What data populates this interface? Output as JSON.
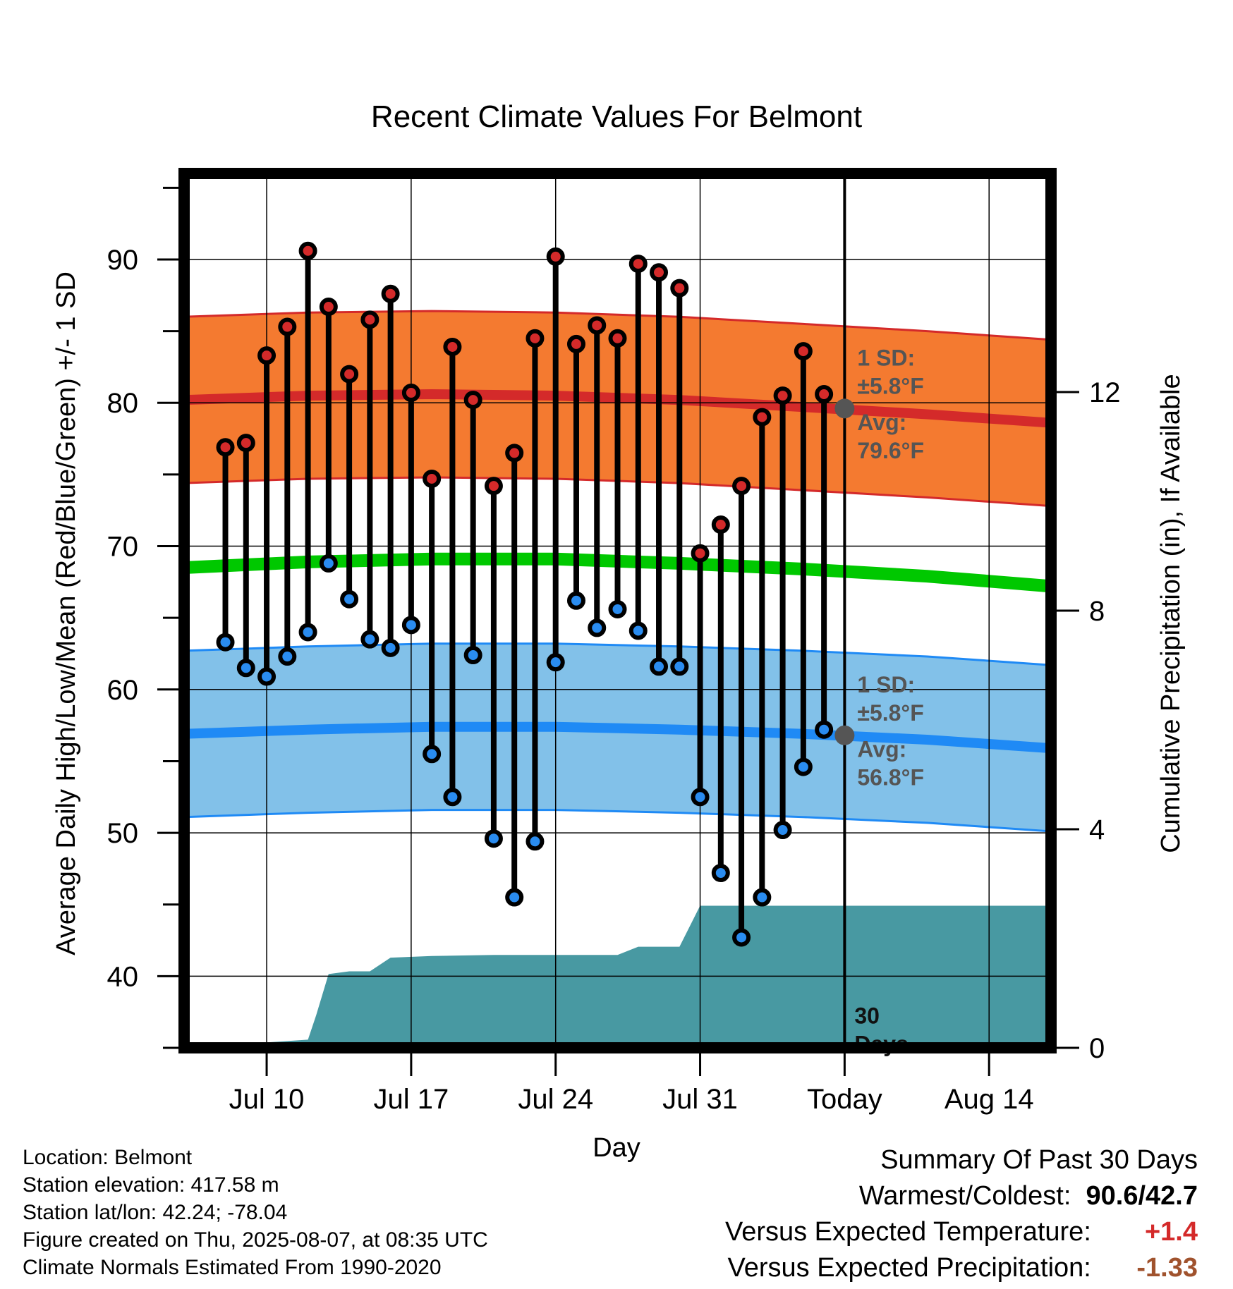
{
  "chart_data": {
    "type": "line",
    "title": "Recent Climate Values For Belmont",
    "xlabel": "Day",
    "ylabel": "Average Daily High/Low/Mean (Red/Blue/Green) +/- 1 SD",
    "y2label": "Cumulative Precipitation (in), If Available",
    "ylim": [
      35,
      96
    ],
    "y2lim": [
      0,
      16
    ],
    "xlim": [
      "2025-07-06",
      "2025-08-17"
    ],
    "x_ticks": [
      {
        "date": "2025-07-10",
        "label": "Jul 10"
      },
      {
        "date": "2025-07-17",
        "label": "Jul 17"
      },
      {
        "date": "2025-07-24",
        "label": "Jul 24"
      },
      {
        "date": "2025-07-31",
        "label": "Jul 31"
      },
      {
        "date": "2025-08-07",
        "label": "Today"
      },
      {
        "date": "2025-08-14",
        "label": "Aug 14"
      }
    ],
    "y_ticks": [
      40,
      50,
      60,
      70,
      80,
      90
    ],
    "y2_ticks": [
      0,
      4,
      8,
      12
    ],
    "grid": true,
    "today": "2025-08-07",
    "days": [
      "2025-07-08",
      "2025-07-09",
      "2025-07-10",
      "2025-07-11",
      "2025-07-12",
      "2025-07-13",
      "2025-07-14",
      "2025-07-15",
      "2025-07-16",
      "2025-07-17",
      "2025-07-18",
      "2025-07-19",
      "2025-07-20",
      "2025-07-21",
      "2025-07-22",
      "2025-07-23",
      "2025-07-24",
      "2025-07-25",
      "2025-07-26",
      "2025-07-27",
      "2025-07-28",
      "2025-07-29",
      "2025-07-30",
      "2025-07-31",
      "2025-08-01",
      "2025-08-02",
      "2025-08-03",
      "2025-08-04",
      "2025-08-05",
      "2025-08-06"
    ],
    "series": [
      {
        "values": [
          76.9,
          77.2,
          83.3,
          85.3,
          90.6,
          86.7,
          82.0,
          85.8,
          87.6,
          80.7,
          74.7,
          83.9,
          80.2,
          74.2,
          76.5,
          84.5,
          90.2,
          84.1,
          85.4,
          84.5,
          89.7,
          89.1,
          88.0,
          69.5,
          71.5,
          74.2,
          79.0,
          80.5,
          83.6,
          80.6
        ],
        "color": "#d42a2a"
      },
      {
        "values": [
          63.3,
          61.5,
          60.9,
          62.3,
          64.0,
          68.8,
          66.3,
          63.5,
          62.9,
          64.5,
          55.5,
          52.5,
          62.4,
          49.6,
          45.5,
          49.4,
          61.9,
          66.2,
          64.3,
          65.6,
          64.1,
          61.6,
          61.6,
          52.5,
          47.2,
          42.7,
          45.5,
          50.2,
          54.6,
          57.2
        ],
        "color": "#2a8cf0"
      }
    ],
    "normals": {
      "dates": [
        "2025-07-06",
        "2025-07-12",
        "2025-07-18",
        "2025-07-24",
        "2025-07-30",
        "2025-08-05",
        "2025-08-11",
        "2025-08-17"
      ],
      "high_avg": [
        80.2,
        80.5,
        80.6,
        80.5,
        80.2,
        79.7,
        79.2,
        78.6
      ],
      "high_sd": 5.8,
      "low_avg": [
        56.9,
        57.2,
        57.4,
        57.4,
        57.2,
        56.9,
        56.5,
        55.9
      ],
      "low_sd": 5.8,
      "mean_avg": [
        68.5,
        68.9,
        69.1,
        69.1,
        68.8,
        68.4,
        67.9,
        67.2
      ],
      "high_color": "#d42a2a",
      "high_band_color": "#f47a30",
      "low_color": "#1f8af5",
      "low_band_color": "#82c1e9",
      "mean_color": "#00c800"
    },
    "precip": {
      "color": "#4899a2",
      "dates": [
        "2025-07-06",
        "2025-07-09.9",
        "2025-07-10",
        "2025-07-12",
        "2025-07-12.4",
        "2025-07-13",
        "2025-07-14",
        "2025-07-15",
        "2025-07-16",
        "2025-07-18",
        "2025-07-21",
        "2025-07-25",
        "2025-07-27",
        "2025-07-28",
        "2025-07-30",
        "2025-07-31",
        "2025-08-17"
      ],
      "values": [
        0,
        0,
        0.1,
        0.15,
        0.6,
        1.35,
        1.4,
        1.4,
        1.65,
        1.68,
        1.7,
        1.7,
        1.7,
        1.85,
        1.85,
        2.6,
        2.6
      ]
    },
    "annotations": {
      "high_sd": [
        "1 SD:",
        "±5.8°F"
      ],
      "high_avg": [
        "Avg:",
        "79.6°F"
      ],
      "low_sd": [
        "1 SD:",
        "±5.8°F"
      ],
      "low_avg": [
        "Avg:",
        "56.8°F"
      ],
      "precip_days": [
        "30",
        "Days"
      ],
      "today_high_point": 79.6,
      "today_low_point": 56.8
    }
  },
  "info": {
    "location": "Location: Belmont",
    "elevation": "Station elevation: 417.58 m",
    "latlon": "Station lat/lon: 42.24; -78.04",
    "created": "Figure created on Thu, 2025-08-07, at 08:35 UTC",
    "normals": "Climate Normals Estimated From 1990-2020"
  },
  "summary": {
    "heading": "Summary Of Past 30 Days",
    "warm_label": "Warmest/Coldest:",
    "warm_value": "90.6/42.7",
    "temp_label": "Versus Expected Temperature:",
    "temp_value": "+1.4",
    "temp_color": "#d42a2a",
    "precip_label": "Versus Expected Precipitation:",
    "precip_value": "-1.33",
    "precip_color": "#a0522d"
  }
}
